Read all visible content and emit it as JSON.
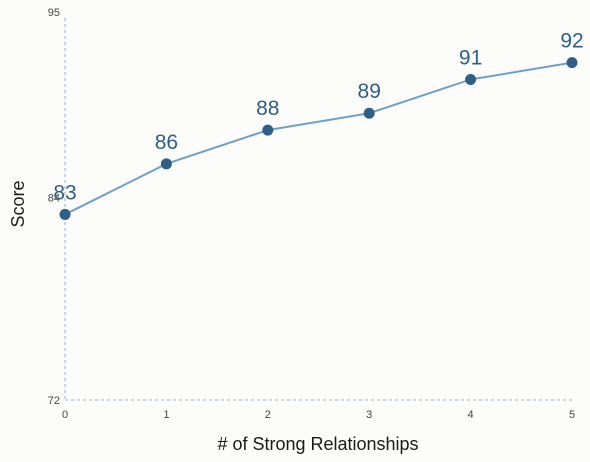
{
  "chart_data": {
    "type": "line",
    "title": "",
    "xlabel": "# of Strong Relationships",
    "ylabel": "Score",
    "x": [
      0,
      1,
      2,
      3,
      4,
      5
    ],
    "xticks": [
      "0",
      "1",
      "2",
      "3",
      "4",
      "5"
    ],
    "yticks": [
      "95",
      "84",
      "72"
    ],
    "ylim": [
      72,
      95
    ],
    "grid": false,
    "series": [
      {
        "values": [
          83,
          86,
          88,
          89,
          91,
          92
        ],
        "data_labels": [
          "83",
          "86",
          "88",
          "89",
          "91",
          "92"
        ],
        "color": "#2f5e88",
        "line_color": "#6fa0cc"
      }
    ]
  }
}
